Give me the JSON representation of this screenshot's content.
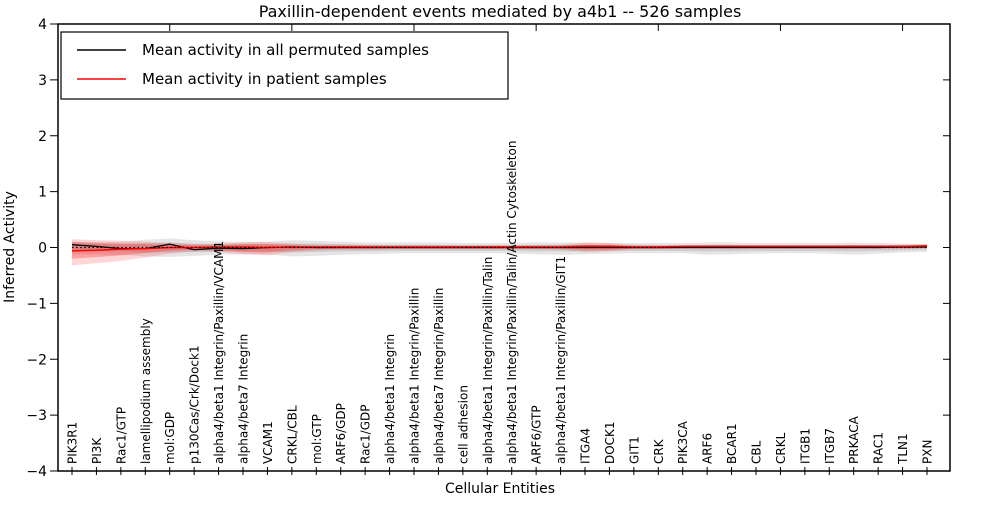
{
  "chart_data": {
    "type": "line",
    "title": "Paxillin-dependent events mediated by a4b1 -- 526 samples",
    "xlabel": "Cellular Entities",
    "ylabel": "Inferred Activity",
    "ylim": [
      -4,
      4
    ],
    "grid": false,
    "legend_position": "upper left",
    "yticks": [
      {
        "value": 4,
        "label": "4"
      },
      {
        "value": 3,
        "label": "3"
      },
      {
        "value": 2,
        "label": "2"
      },
      {
        "value": 1,
        "label": "1"
      },
      {
        "value": 0,
        "label": "0"
      },
      {
        "value": -1,
        "label": "−1"
      },
      {
        "value": -2,
        "label": "−2"
      },
      {
        "value": -3,
        "label": "−3"
      },
      {
        "value": -4,
        "label": "−4"
      }
    ],
    "categories": [
      "PIK3R1",
      "PI3K",
      "Rac1/GTP",
      "lamellipodium assembly",
      "mol:GDP",
      "p130Cas/Crk/Dock1",
      "alpha4/beta1 Integrin/Paxillin/VCAM1",
      "alpha4/beta7 Integrin",
      "VCAM1",
      "CRKL/CBL",
      "mol:GTP",
      "ARF6/GDP",
      "Rac1/GDP",
      "alpha4/beta1 Integrin",
      "alpha4/beta1 Integrin/Paxillin",
      "alpha4/beta7 Integrin/Paxillin",
      "cell adhesion",
      "alpha4/beta1 Integrin/Paxillin/Talin",
      "alpha4/beta1 Integrin/Paxillin/Talin/Actin Cytoskeleton",
      "ARF6/GTP",
      "alpha4/beta1 Integrin/Paxillin/GIT1",
      "ITGA4",
      "DOCK1",
      "GIT1",
      "CRK",
      "PIK3CA",
      "ARF6",
      "BCAR1",
      "CBL",
      "CRKL",
      "ITGB1",
      "ITGB7",
      "PRKACA",
      "RAC1",
      "TLN1",
      "PXN"
    ],
    "series": [
      {
        "key": "permuted-mean-line",
        "name": "Mean activity in all permuted samples",
        "color": "#000000",
        "values": [
          0.05,
          0.02,
          -0.02,
          -0.02,
          0.06,
          -0.04,
          -0.01,
          -0.02,
          0.0,
          0.01,
          0.0,
          0.0,
          0.0,
          0.0,
          0.0,
          0.0,
          0.0,
          0.0,
          0.0,
          0.0,
          0.0,
          0.0,
          0.0,
          0.0,
          0.0,
          0.0,
          0.0,
          0.0,
          0.0,
          0.0,
          0.0,
          0.0,
          0.0,
          0.0,
          0.01,
          0.01
        ]
      },
      {
        "key": "patient-mean-line",
        "name": "Mean activity in patient samples",
        "color": "#ff0000",
        "values": [
          -0.06,
          -0.05,
          -0.03,
          -0.02,
          0.0,
          0.0,
          0.01,
          0.01,
          0.0,
          0.01,
          0.01,
          0.01,
          0.01,
          0.01,
          0.01,
          0.01,
          0.01,
          0.01,
          0.01,
          0.01,
          0.01,
          0.02,
          0.02,
          0.01,
          0.01,
          0.02,
          0.02,
          0.02,
          0.02,
          0.02,
          0.02,
          0.02,
          0.02,
          0.02,
          0.02,
          0.03
        ]
      }
    ],
    "bands": [
      {
        "name": "permuted-band-outer",
        "fill": "rgba(0,0,0,0.10)",
        "upper": [
          0.1,
          0.1,
          0.1,
          0.14,
          0.16,
          0.13,
          0.11,
          0.1,
          0.1,
          0.13,
          0.12,
          0.1,
          0.09,
          0.09,
          0.09,
          0.09,
          0.08,
          0.08,
          0.08,
          0.09,
          0.09,
          0.09,
          0.08,
          0.08,
          0.08,
          0.08,
          0.09,
          0.09,
          0.08,
          0.08,
          0.08,
          0.08,
          0.09,
          0.08,
          0.07,
          0.06
        ],
        "lower": [
          -0.12,
          -0.12,
          -0.13,
          -0.16,
          -0.17,
          -0.15,
          -0.13,
          -0.12,
          -0.12,
          -0.16,
          -0.15,
          -0.13,
          -0.12,
          -0.11,
          -0.1,
          -0.1,
          -0.1,
          -0.1,
          -0.11,
          -0.12,
          -0.13,
          -0.12,
          -0.11,
          -0.1,
          -0.1,
          -0.1,
          -0.13,
          -0.12,
          -0.11,
          -0.1,
          -0.1,
          -0.11,
          -0.13,
          -0.11,
          -0.09,
          -0.08
        ]
      },
      {
        "name": "permuted-band-inner",
        "fill": "rgba(0,0,0,0.10)",
        "upper": [
          0.06,
          0.06,
          0.06,
          0.08,
          0.09,
          0.07,
          0.06,
          0.06,
          0.06,
          0.07,
          0.07,
          0.06,
          0.05,
          0.05,
          0.05,
          0.05,
          0.04,
          0.04,
          0.04,
          0.05,
          0.05,
          0.05,
          0.04,
          0.04,
          0.04,
          0.04,
          0.05,
          0.05,
          0.04,
          0.04,
          0.04,
          0.04,
          0.05,
          0.04,
          0.04,
          0.03
        ],
        "lower": [
          -0.07,
          -0.07,
          -0.07,
          -0.09,
          -0.09,
          -0.08,
          -0.07,
          -0.07,
          -0.07,
          -0.09,
          -0.08,
          -0.07,
          -0.07,
          -0.06,
          -0.06,
          -0.06,
          -0.06,
          -0.06,
          -0.06,
          -0.07,
          -0.07,
          -0.07,
          -0.06,
          -0.06,
          -0.06,
          -0.06,
          -0.07,
          -0.07,
          -0.06,
          -0.06,
          -0.06,
          -0.06,
          -0.07,
          -0.06,
          -0.05,
          -0.04
        ]
      },
      {
        "name": "patient-band-outer",
        "fill": "rgba(255,0,0,0.16)",
        "upper": [
          0.15,
          0.13,
          0.12,
          0.1,
          0.08,
          0.06,
          0.07,
          0.09,
          0.1,
          0.07,
          0.05,
          0.05,
          0.05,
          0.04,
          0.04,
          0.04,
          0.04,
          0.04,
          0.04,
          0.04,
          0.05,
          0.09,
          0.08,
          0.05,
          0.04,
          0.04,
          0.04,
          0.04,
          0.04,
          0.04,
          0.04,
          0.04,
          0.04,
          0.04,
          0.05,
          0.06
        ],
        "lower": [
          -0.32,
          -0.28,
          -0.24,
          -0.18,
          -0.11,
          -0.07,
          -0.08,
          -0.12,
          -0.14,
          -0.08,
          -0.05,
          -0.04,
          -0.04,
          -0.03,
          -0.03,
          -0.03,
          -0.03,
          -0.03,
          -0.03,
          -0.03,
          -0.04,
          -0.08,
          -0.07,
          -0.03,
          -0.03,
          -0.02,
          -0.02,
          -0.02,
          -0.02,
          -0.02,
          -0.02,
          -0.02,
          -0.02,
          -0.02,
          -0.02,
          -0.01
        ]
      },
      {
        "name": "patient-band-inner",
        "fill": "rgba(255,0,0,0.26)",
        "upper": [
          0.1,
          0.08,
          0.07,
          0.06,
          0.05,
          0.04,
          0.04,
          0.06,
          0.06,
          0.04,
          0.03,
          0.03,
          0.03,
          0.03,
          0.03,
          0.03,
          0.03,
          0.03,
          0.03,
          0.03,
          0.03,
          0.05,
          0.05,
          0.03,
          0.03,
          0.03,
          0.03,
          0.03,
          0.03,
          0.03,
          0.03,
          0.03,
          0.03,
          0.03,
          0.03,
          0.04
        ],
        "lower": [
          -0.2,
          -0.17,
          -0.14,
          -0.1,
          -0.06,
          -0.04,
          -0.05,
          -0.08,
          -0.09,
          -0.05,
          -0.03,
          -0.02,
          -0.02,
          -0.02,
          -0.02,
          -0.02,
          -0.02,
          -0.02,
          -0.02,
          -0.02,
          -0.02,
          -0.04,
          -0.04,
          -0.02,
          -0.02,
          -0.01,
          -0.01,
          -0.01,
          -0.01,
          -0.01,
          -0.01,
          -0.01,
          -0.01,
          -0.01,
          -0.01,
          0.0
        ]
      }
    ],
    "reference_line": {
      "y": 0,
      "style": "dotted",
      "color": "#000000"
    }
  }
}
